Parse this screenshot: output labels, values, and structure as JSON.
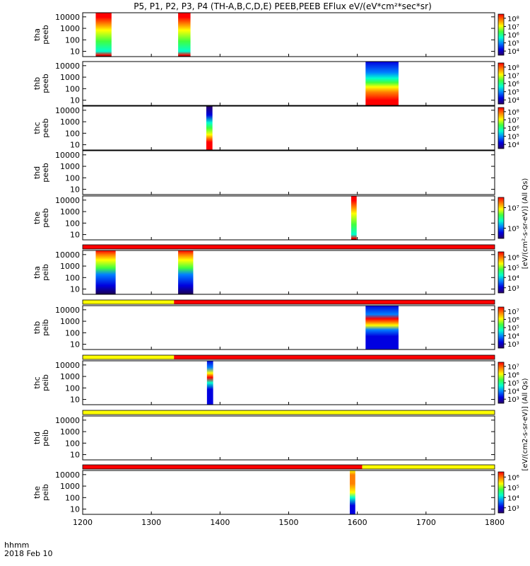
{
  "title": "P5, P1, P2, P3, P4 (TH-A,B,C,D,E) PEEB,PEEB EFlux eV/(eV*cm²*sec*sr)",
  "footer": {
    "time_label": "hhmm",
    "date_label": "2018 Feb 10"
  },
  "colorbar_labels": {
    "peeb": "[eV/(cm²-s-sr-eV)] (All Qs)",
    "peib": "[eV/(cm2-s-sr-eV)] (All Qs)"
  },
  "colormap": [
    "#2a0066",
    "#0000e0",
    "#0080ff",
    "#00ffd0",
    "#40ff40",
    "#ffff00",
    "#ff8000",
    "#ff0000"
  ],
  "flag_colors": {
    "red": "#ff0000",
    "yellow": "#ffff00"
  },
  "chart_data": {
    "type": "heatmap",
    "x_range": [
      1200,
      1800
    ],
    "x_ticks": [
      1200,
      1300,
      1400,
      1500,
      1600,
      1700,
      1800
    ],
    "y_scale": "log",
    "y_ticks": [
      "10",
      "100",
      "1000",
      "10000"
    ],
    "y_unit": "eV",
    "panels": [
      {
        "label": [
          "tha",
          "peeb"
        ],
        "cbar": [
          "10⁴",
          "10⁵",
          "10⁶",
          "10⁷",
          "10⁸"
        ],
        "blocks": [
          {
            "x": [
              1219,
              1242
            ],
            "kind": "hot"
          },
          {
            "x": [
              1339,
              1357
            ],
            "kind": "hot"
          }
        ]
      },
      {
        "label": [
          "thb",
          "peeb"
        ],
        "cbar": [
          "10⁴",
          "10⁵",
          "10⁶",
          "10⁷",
          "10⁸"
        ],
        "blocks": [
          {
            "x": [
              1612,
              1660
            ],
            "kind": "cold"
          }
        ]
      },
      {
        "label": [
          "thc",
          "peeb"
        ],
        "cbar": [
          "10⁴",
          "10⁵",
          "10⁶",
          "10⁷",
          "10⁸"
        ],
        "blocks": [
          {
            "x": [
              1380,
              1389
            ],
            "kind": "mid"
          }
        ]
      },
      {
        "label": [
          "thd",
          "peeb"
        ],
        "cbar": [],
        "blocks": []
      },
      {
        "label": [
          "the",
          "peeb"
        ],
        "cbar": [
          "10⁵",
          "10⁷"
        ],
        "blocks": [
          {
            "x": [
              1591,
              1599
            ],
            "kind": "hot"
          }
        ]
      },
      {
        "label": [
          "tha",
          "peib"
        ],
        "cbar": [
          "10³",
          "10⁴",
          "10⁵",
          "10⁶"
        ],
        "blocks": [
          {
            "x": [
              1219,
              1248
            ],
            "kind": "ion"
          },
          {
            "x": [
              1339,
              1361
            ],
            "kind": "ion"
          }
        ]
      },
      {
        "label": [
          "thb",
          "peib"
        ],
        "cbar": [
          "10³",
          "10⁴",
          "10⁵",
          "10⁶",
          "10⁷"
        ],
        "blocks": [
          {
            "x": [
              1612,
              1660
            ],
            "kind": "ioncold"
          }
        ]
      },
      {
        "label": [
          "thc",
          "peib"
        ],
        "cbar": [
          "10³",
          "10⁴",
          "10⁵",
          "10⁶",
          "10⁷"
        ],
        "blocks": [
          {
            "x": [
              1381,
              1390
            ],
            "kind": "ionmid"
          }
        ]
      },
      {
        "label": [
          "thd",
          "peib"
        ],
        "cbar": [],
        "blocks": []
      },
      {
        "label": [
          "the",
          "peib"
        ],
        "cbar": [
          "10³",
          "10⁴",
          "10⁵",
          "10⁶"
        ],
        "blocks": [
          {
            "x": [
              1589,
              1597
            ],
            "kind": "ionhot"
          }
        ]
      }
    ],
    "flag_bars": [
      {
        "segments": [
          {
            "x": [
              1200,
              1800
            ],
            "color": "red"
          }
        ]
      },
      {
        "segments": [
          {
            "x": [
              1200,
              1333
            ],
            "color": "yellow"
          },
          {
            "x": [
              1333,
              1800
            ],
            "color": "red"
          }
        ]
      },
      {
        "segments": [
          {
            "x": [
              1200,
              1333
            ],
            "color": "yellow"
          },
          {
            "x": [
              1333,
              1800
            ],
            "color": "red"
          }
        ]
      },
      {
        "segments": [
          {
            "x": [
              1200,
              1800
            ],
            "color": "yellow"
          }
        ]
      },
      {
        "segments": [
          {
            "x": [
              1200,
              1607
            ],
            "color": "red"
          },
          {
            "x": [
              1607,
              1800
            ],
            "color": "yellow"
          }
        ]
      }
    ]
  }
}
